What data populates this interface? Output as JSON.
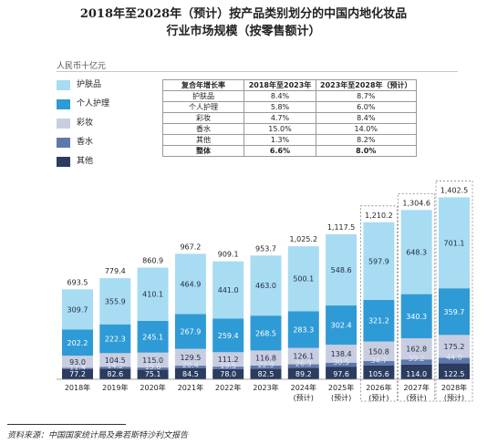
{
  "title": {
    "line1": "2018年至2028年（预计）按产品类别划分的中国内地化妆品",
    "line2": "行业市场规模（按零售额计）"
  },
  "unit": "人民币十亿元",
  "source": "资料来源：中国国家统计局及弗若斯特沙利文报告",
  "legend": [
    {
      "label": "护肤品",
      "color": "#a8dcf2"
    },
    {
      "label": "个人护理",
      "color": "#2e9bd6"
    },
    {
      "label": "彩妆",
      "color": "#c9cde0"
    },
    {
      "label": "香水",
      "color": "#5e78ad"
    },
    {
      "label": "其他",
      "color": "#2b3c60"
    }
  ],
  "growth_table": {
    "headers": [
      "复合年增长率",
      "2018年至2023年",
      "2023年至2028年（预计）"
    ],
    "rows": [
      [
        "护肤品",
        "8.4%",
        "8.7%"
      ],
      [
        "个人护理",
        "5.8%",
        "6.0%"
      ],
      [
        "彩妆",
        "4.7%",
        "8.4%"
      ],
      [
        "香水",
        "15.0%",
        "14.0%"
      ],
      [
        "其他",
        "1.3%",
        "8.2%"
      ]
    ],
    "total": [
      "整体",
      "6.6%",
      "8.0%"
    ]
  },
  "chart_data": {
    "type": "bar",
    "stacked": true,
    "categories": [
      "2018年",
      "2019年",
      "2020年",
      "2021年",
      "2022年",
      "2023年",
      "2024年\n(预计)",
      "2025年\n(预计)",
      "2026年\n(预计)",
      "2027年\n(预计)",
      "2028年\n(预计)"
    ],
    "forecast_start_index": 6,
    "series": [
      {
        "name": "其他",
        "color": "#2b3c60",
        "values": [
          77.2,
          82.6,
          75.1,
          84.5,
          78.0,
          82.5,
          89.2,
          97.6,
          105.6,
          114.0,
          122.5
        ]
      },
      {
        "name": "香水",
        "color": "#5e78ad",
        "values": [
          11.4,
          14.2,
          15.6,
          20.4,
          19.5,
          22.9,
          26.3,
          30.5,
          34.7,
          39.2,
          44.0
        ]
      },
      {
        "name": "彩妆",
        "color": "#c9cde0",
        "values": [
          93.0,
          104.5,
          115.0,
          129.5,
          111.2,
          116.8,
          126.1,
          138.4,
          150.8,
          162.8,
          175.2
        ]
      },
      {
        "name": "个人护理",
        "color": "#2e9bd6",
        "values": [
          202.2,
          222.3,
          245.1,
          267.9,
          259.4,
          268.5,
          283.3,
          302.4,
          321.2,
          340.3,
          359.7
        ]
      },
      {
        "name": "护肤品",
        "color": "#a8dcf2",
        "values": [
          309.7,
          355.9,
          410.1,
          464.9,
          441.0,
          463.0,
          500.1,
          548.6,
          597.9,
          648.3,
          701.1
        ]
      }
    ],
    "totals": [
      "693.5",
      "779.4",
      "860.9",
      "967.2",
      "909.1",
      "953.7",
      "1,025.2",
      "1,117.5",
      "1,210.2",
      "1,304.6",
      "1,402.5"
    ]
  }
}
